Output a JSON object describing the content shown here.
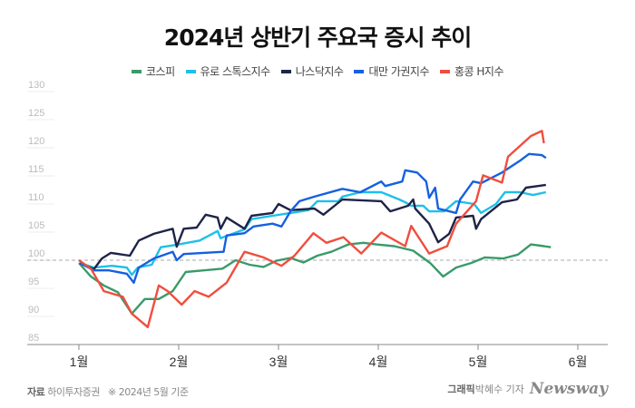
{
  "chart_data": {
    "type": "line",
    "title": "2024년 상반기 주요국 증시 추이",
    "xlabel": "",
    "ylabel": "",
    "x_ticks": [
      {
        "value": 1,
        "label": "1월"
      },
      {
        "value": 2,
        "label": "2월"
      },
      {
        "value": 3,
        "label": "3월"
      },
      {
        "value": 4,
        "label": "4월"
      },
      {
        "value": 5,
        "label": "5월"
      },
      {
        "value": 6,
        "label": "6월"
      }
    ],
    "y_ticks": [
      85,
      90,
      95,
      100,
      105,
      110,
      115,
      120,
      125,
      130
    ],
    "xlim": [
      1,
      6
    ],
    "ylim": [
      85,
      130
    ],
    "reference_line": 100,
    "legend_position": "top-center",
    "series": [
      {
        "name": "코스피",
        "color": "#3a9a6a",
        "points": [
          [
            1.0,
            99.5
          ],
          [
            1.12,
            97.1
          ],
          [
            1.25,
            95.5
          ],
          [
            1.39,
            94.3
          ],
          [
            1.53,
            90.5
          ],
          [
            1.66,
            93.1
          ],
          [
            1.8,
            93.1
          ],
          [
            1.94,
            94.5
          ],
          [
            2.07,
            97.9
          ],
          [
            2.25,
            98.2
          ],
          [
            2.44,
            98.5
          ],
          [
            2.57,
            100
          ],
          [
            2.71,
            99.2
          ],
          [
            2.85,
            98.8
          ],
          [
            2.98,
            99.9
          ],
          [
            3.12,
            100.4
          ],
          [
            3.25,
            99.6
          ],
          [
            3.39,
            100.8
          ],
          [
            3.53,
            101.5
          ],
          [
            3.7,
            102.8
          ],
          [
            3.85,
            103.1
          ],
          [
            3.98,
            102.8
          ],
          [
            4.16,
            102.5
          ],
          [
            4.35,
            101.7
          ],
          [
            4.52,
            99.5
          ],
          [
            4.65,
            97.1
          ],
          [
            4.78,
            98.7
          ],
          [
            4.93,
            99.5
          ],
          [
            5.07,
            100.5
          ],
          [
            5.25,
            100.3
          ],
          [
            5.4,
            101
          ],
          [
            5.53,
            102.8
          ],
          [
            5.66,
            102.5
          ],
          [
            5.73,
            102.3
          ]
        ]
      },
      {
        "name": "유로 스톡스지수",
        "color": "#1ec0e8",
        "points": [
          [
            1.01,
            99.5
          ],
          [
            1.15,
            98.7
          ],
          [
            1.33,
            99
          ],
          [
            1.48,
            98.7
          ],
          [
            1.53,
            97.4
          ],
          [
            1.59,
            98.7
          ],
          [
            1.73,
            99.2
          ],
          [
            1.82,
            102.3
          ],
          [
            1.96,
            102.7
          ],
          [
            2.21,
            103.5
          ],
          [
            2.39,
            105.2
          ],
          [
            2.42,
            103.9
          ],
          [
            2.66,
            105.5
          ],
          [
            2.73,
            107.3
          ],
          [
            2.94,
            107.9
          ],
          [
            3.12,
            108.4
          ],
          [
            3.3,
            108.9
          ],
          [
            3.39,
            110.5
          ],
          [
            3.6,
            110.5
          ],
          [
            3.64,
            111.3
          ],
          [
            3.82,
            112.1
          ],
          [
            4.03,
            112.1
          ],
          [
            4.21,
            110.8
          ],
          [
            4.27,
            110.3
          ],
          [
            4.33,
            109.7
          ],
          [
            4.45,
            109.7
          ],
          [
            4.51,
            108.7
          ],
          [
            4.66,
            108.7
          ],
          [
            4.78,
            110.5
          ],
          [
            4.96,
            110
          ],
          [
            5.03,
            108.4
          ],
          [
            5.18,
            110
          ],
          [
            5.27,
            112.1
          ],
          [
            5.42,
            112.1
          ],
          [
            5.55,
            111.6
          ],
          [
            5.68,
            112.1
          ]
        ]
      },
      {
        "name": "나스닥지수",
        "color": "#1e2448",
        "points": [
          [
            1.01,
            99.5
          ],
          [
            1.15,
            98.4
          ],
          [
            1.23,
            100.3
          ],
          [
            1.32,
            101.3
          ],
          [
            1.51,
            100.8
          ],
          [
            1.6,
            103.5
          ],
          [
            1.75,
            104.7
          ],
          [
            1.94,
            105.6
          ],
          [
            1.98,
            102.4
          ],
          [
            2.05,
            105.6
          ],
          [
            2.18,
            105.8
          ],
          [
            2.27,
            108.1
          ],
          [
            2.39,
            107.6
          ],
          [
            2.42,
            105.6
          ],
          [
            2.48,
            107.6
          ],
          [
            2.66,
            105.6
          ],
          [
            2.73,
            107.9
          ],
          [
            2.94,
            108.4
          ],
          [
            3.0,
            110
          ],
          [
            3.12,
            108.9
          ],
          [
            3.36,
            109.2
          ],
          [
            3.45,
            108.1
          ],
          [
            3.64,
            110.8
          ],
          [
            4.03,
            110.5
          ],
          [
            4.12,
            108.7
          ],
          [
            4.3,
            109.7
          ],
          [
            4.35,
            110.8
          ],
          [
            4.37,
            109.2
          ],
          [
            4.51,
            106.5
          ],
          [
            4.6,
            103.2
          ],
          [
            4.71,
            104.7
          ],
          [
            4.78,
            107.6
          ],
          [
            4.95,
            107.9
          ],
          [
            4.98,
            105.6
          ],
          [
            5.03,
            107.3
          ],
          [
            5.24,
            110.3
          ],
          [
            5.39,
            110.8
          ],
          [
            5.48,
            112.9
          ],
          [
            5.6,
            113.2
          ],
          [
            5.68,
            113.4
          ]
        ]
      },
      {
        "name": "대만 가권지수",
        "color": "#1560e0",
        "points": [
          [
            1.01,
            99.5
          ],
          [
            1.15,
            98.2
          ],
          [
            1.3,
            98.2
          ],
          [
            1.48,
            97.6
          ],
          [
            1.55,
            96
          ],
          [
            1.6,
            98.7
          ],
          [
            1.75,
            100.3
          ],
          [
            1.94,
            101.5
          ],
          [
            1.98,
            100
          ],
          [
            2.05,
            101.1
          ],
          [
            2.45,
            101.5
          ],
          [
            2.48,
            104.4
          ],
          [
            2.66,
            104.8
          ],
          [
            2.75,
            106
          ],
          [
            2.94,
            106.5
          ],
          [
            3.03,
            106
          ],
          [
            3.12,
            108.7
          ],
          [
            3.21,
            110.5
          ],
          [
            3.36,
            111.3
          ],
          [
            3.64,
            112.7
          ],
          [
            3.82,
            112.1
          ],
          [
            4.03,
            114
          ],
          [
            4.07,
            113.2
          ],
          [
            4.24,
            114
          ],
          [
            4.27,
            116
          ],
          [
            4.39,
            115.6
          ],
          [
            4.48,
            114
          ],
          [
            4.51,
            111.1
          ],
          [
            4.57,
            112.9
          ],
          [
            4.6,
            109.2
          ],
          [
            4.78,
            108.4
          ],
          [
            4.82,
            110.8
          ],
          [
            4.95,
            114
          ],
          [
            5.03,
            113.7
          ],
          [
            5.24,
            115.6
          ],
          [
            5.42,
            117.7
          ],
          [
            5.51,
            118.9
          ],
          [
            5.64,
            118.7
          ],
          [
            5.68,
            118.2
          ]
        ]
      },
      {
        "name": "홍콩 H지수",
        "color": "#f04e3e",
        "points": [
          [
            1.0,
            100
          ],
          [
            1.12,
            98.5
          ],
          [
            1.25,
            94.5
          ],
          [
            1.44,
            93.5
          ],
          [
            1.53,
            90.5
          ],
          [
            1.69,
            88.1
          ],
          [
            1.8,
            95.5
          ],
          [
            1.89,
            94.5
          ],
          [
            2.03,
            92.1
          ],
          [
            2.16,
            94.5
          ],
          [
            2.3,
            93.5
          ],
          [
            2.48,
            96
          ],
          [
            2.66,
            101.5
          ],
          [
            2.85,
            100.5
          ],
          [
            3.03,
            99
          ],
          [
            3.16,
            100.8
          ],
          [
            3.35,
            104.8
          ],
          [
            3.48,
            103.1
          ],
          [
            3.65,
            104.1
          ],
          [
            3.83,
            101.2
          ],
          [
            4.03,
            104.9
          ],
          [
            4.27,
            102.5
          ],
          [
            4.33,
            106.1
          ],
          [
            4.51,
            101.2
          ],
          [
            4.69,
            102.5
          ],
          [
            4.78,
            106.5
          ],
          [
            4.98,
            110.5
          ],
          [
            5.05,
            115.1
          ],
          [
            5.24,
            113.8
          ],
          [
            5.3,
            118.4
          ],
          [
            5.53,
            122.1
          ],
          [
            5.64,
            123
          ],
          [
            5.66,
            120.8
          ]
        ]
      }
    ]
  },
  "footer": {
    "source_label": "자료",
    "source": "하이투자증권",
    "note": "※ 2024년 5월 기준",
    "graphic_label": "그래픽",
    "author": "박혜수 기자",
    "logo": "Newsway"
  }
}
